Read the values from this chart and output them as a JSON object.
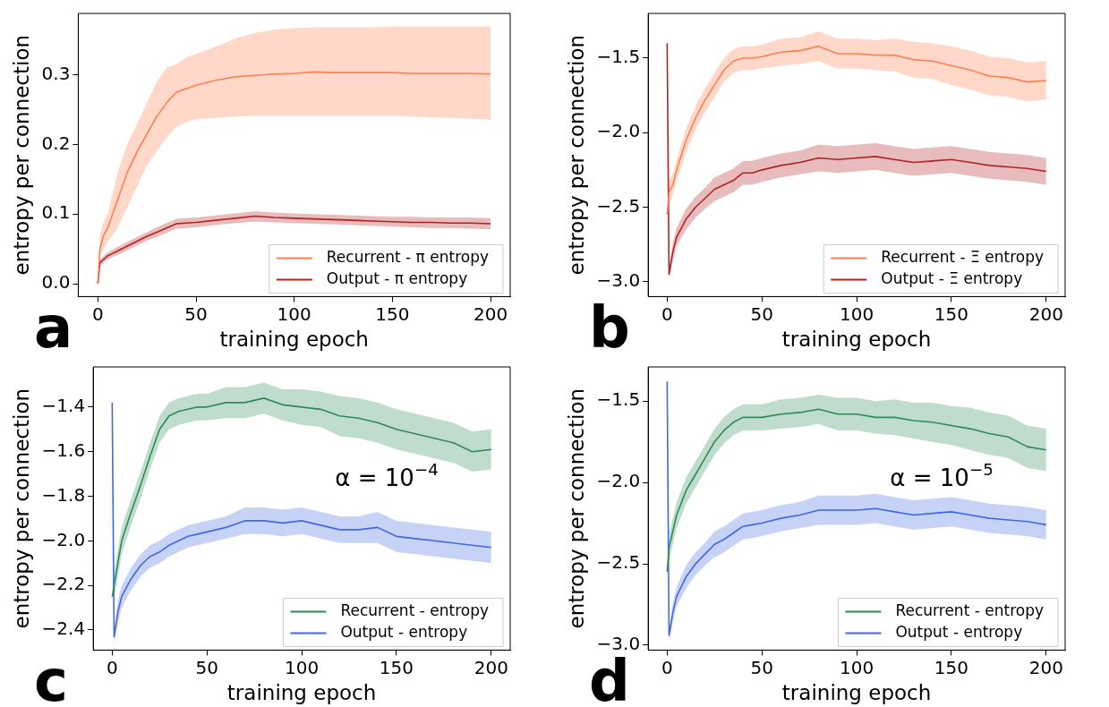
{
  "chart_data": [
    {
      "type": "line",
      "xlabel": "training epoch",
      "ylabel": "entropy per connection",
      "annotations": [
        "a"
      ],
      "legend": "bottom right",
      "grid": false,
      "xlim": [
        -10,
        210
      ],
      "xticks": [
        0,
        50,
        100,
        150,
        200
      ],
      "ylim": [
        -0.0185,
        0.388
      ],
      "yticks": [
        {
          "value": 0,
          "label": "0.0"
        },
        {
          "value": 0.1,
          "label": "0.1"
        },
        {
          "value": 0.2,
          "label": "0.2"
        },
        {
          "value": 0.3,
          "label": "0.3"
        }
      ],
      "x": [
        0,
        1,
        3,
        5,
        10,
        15,
        20,
        25,
        30,
        35,
        40,
        45,
        50,
        60,
        70,
        80,
        90,
        100,
        110,
        120,
        130,
        140,
        150,
        160,
        170,
        180,
        190,
        200
      ],
      "series": [
        {
          "name": "Recurrent - π entropy",
          "color": "#ff7f50",
          "values": [
            0,
            0.05,
            0.07,
            0.08,
            0.12,
            0.16,
            0.19,
            0.215,
            0.24,
            0.26,
            0.275,
            0.28,
            0.285,
            0.292,
            0.297,
            0.299,
            0.301,
            0.302,
            0.304,
            0.303,
            0.303,
            0.303,
            0.303,
            0.302,
            0.302,
            0.302,
            0.302,
            0.301
          ],
          "lower": [
            0,
            0.04,
            0.05,
            0.06,
            0.08,
            0.11,
            0.14,
            0.17,
            0.19,
            0.21,
            0.225,
            0.232,
            0.236,
            0.238,
            0.24,
            0.241,
            0.241,
            0.241,
            0.241,
            0.241,
            0.241,
            0.241,
            0.241,
            0.24,
            0.239,
            0.238,
            0.237,
            0.235
          ],
          "upper": [
            0,
            0.07,
            0.09,
            0.1,
            0.16,
            0.2,
            0.23,
            0.26,
            0.29,
            0.31,
            0.315,
            0.325,
            0.33,
            0.34,
            0.352,
            0.36,
            0.365,
            0.367,
            0.368,
            0.368,
            0.368,
            0.368,
            0.369,
            0.369,
            0.369,
            0.369,
            0.369,
            0.369
          ]
        },
        {
          "name": "Output - π entropy",
          "color": "#b22222",
          "values": [
            0,
            0.03,
            0.035,
            0.04,
            0.047,
            0.054,
            0.061,
            0.068,
            0.074,
            0.08,
            0.086,
            0.087,
            0.088,
            0.091,
            0.094,
            0.097,
            0.095,
            0.094,
            0.093,
            0.092,
            0.091,
            0.09,
            0.089,
            0.088,
            0.088,
            0.087,
            0.087,
            0.086
          ],
          "lower": [
            0,
            0.026,
            0.03,
            0.035,
            0.041,
            0.048,
            0.055,
            0.062,
            0.067,
            0.073,
            0.079,
            0.08,
            0.081,
            0.084,
            0.087,
            0.089,
            0.088,
            0.087,
            0.086,
            0.085,
            0.084,
            0.083,
            0.082,
            0.081,
            0.08,
            0.08,
            0.079,
            0.078
          ],
          "upper": [
            0,
            0.034,
            0.04,
            0.045,
            0.053,
            0.06,
            0.067,
            0.074,
            0.081,
            0.087,
            0.093,
            0.094,
            0.095,
            0.098,
            0.101,
            0.104,
            0.102,
            0.101,
            0.1,
            0.099,
            0.098,
            0.097,
            0.096,
            0.096,
            0.095,
            0.095,
            0.095,
            0.094
          ]
        }
      ]
    },
    {
      "type": "line",
      "xlabel": "training epoch",
      "ylabel": "entropy per connection",
      "annotations": [
        "b"
      ],
      "legend": "bottom right",
      "grid": false,
      "xlim": [
        -10,
        210
      ],
      "xticks": [
        0,
        50,
        100,
        150,
        200
      ],
      "ylim": [
        -3.1,
        -1.2
      ],
      "yticks": [
        {
          "value": -1.5,
          "label": "−1.5"
        },
        {
          "value": -2,
          "label": "−2.0"
        },
        {
          "value": -2.5,
          "label": "−2.5"
        },
        {
          "value": -3,
          "label": "−3.0"
        }
      ],
      "x": [
        0,
        1,
        3,
        5,
        10,
        15,
        20,
        25,
        30,
        35,
        40,
        45,
        50,
        60,
        70,
        80,
        90,
        100,
        110,
        120,
        130,
        140,
        150,
        160,
        170,
        180,
        190,
        200
      ],
      "series": [
        {
          "name": "Recurrent - Ξ entropy",
          "color": "#ff7f50",
          "values": [
            -2.55,
            -2.4,
            -2.35,
            -2.25,
            -2.05,
            -1.9,
            -1.78,
            -1.68,
            -1.58,
            -1.52,
            -1.5,
            -1.5,
            -1.49,
            -1.46,
            -1.45,
            -1.42,
            -1.47,
            -1.47,
            -1.48,
            -1.48,
            -1.51,
            -1.52,
            -1.55,
            -1.58,
            -1.62,
            -1.63,
            -1.66,
            -1.65
          ],
          "lower": [
            -2.55,
            -2.48,
            -2.42,
            -2.32,
            -2.13,
            -1.98,
            -1.86,
            -1.76,
            -1.66,
            -1.6,
            -1.58,
            -1.58,
            -1.57,
            -1.55,
            -1.54,
            -1.52,
            -1.57,
            -1.57,
            -1.58,
            -1.59,
            -1.63,
            -1.64,
            -1.68,
            -1.71,
            -1.75,
            -1.76,
            -1.79,
            -1.78
          ],
          "upper": [
            -2.55,
            -2.32,
            -2.28,
            -2.18,
            -1.97,
            -1.82,
            -1.7,
            -1.6,
            -1.5,
            -1.44,
            -1.42,
            -1.42,
            -1.41,
            -1.37,
            -1.36,
            -1.32,
            -1.37,
            -1.37,
            -1.38,
            -1.37,
            -1.39,
            -1.4,
            -1.42,
            -1.45,
            -1.49,
            -1.5,
            -1.53,
            -1.52
          ]
        },
        {
          "name": "Output - Ξ entropy",
          "color": "#b22222",
          "values": [
            -1.4,
            -2.95,
            -2.8,
            -2.7,
            -2.58,
            -2.5,
            -2.44,
            -2.38,
            -2.35,
            -2.32,
            -2.27,
            -2.27,
            -2.25,
            -2.22,
            -2.2,
            -2.17,
            -2.18,
            -2.17,
            -2.16,
            -2.18,
            -2.2,
            -2.19,
            -2.18,
            -2.2,
            -2.22,
            -2.23,
            -2.24,
            -2.26
          ],
          "lower": [
            -1.4,
            -2.98,
            -2.86,
            -2.76,
            -2.65,
            -2.57,
            -2.51,
            -2.46,
            -2.43,
            -2.4,
            -2.35,
            -2.35,
            -2.33,
            -2.3,
            -2.28,
            -2.26,
            -2.27,
            -2.26,
            -2.25,
            -2.27,
            -2.29,
            -2.28,
            -2.27,
            -2.29,
            -2.31,
            -2.32,
            -2.33,
            -2.35
          ],
          "upper": [
            -1.4,
            -2.92,
            -2.74,
            -2.64,
            -2.51,
            -2.43,
            -2.37,
            -2.3,
            -2.27,
            -2.24,
            -2.19,
            -2.19,
            -2.17,
            -2.14,
            -2.12,
            -2.08,
            -2.09,
            -2.08,
            -2.07,
            -2.09,
            -2.11,
            -2.1,
            -2.09,
            -2.11,
            -2.13,
            -2.14,
            -2.15,
            -2.17
          ]
        }
      ]
    },
    {
      "type": "line",
      "xlabel": "training epoch",
      "ylabel": "entropy per connection",
      "annotations": [
        "c",
        "α = 10$^{−4}$"
      ],
      "legend": "bottom right",
      "grid": false,
      "xlim": [
        -10,
        210
      ],
      "xticks": [
        0,
        50,
        100,
        150,
        200
      ],
      "ylim": [
        -2.49,
        -1.22
      ],
      "yticks": [
        {
          "value": -1.4,
          "label": "−1.4"
        },
        {
          "value": -1.6,
          "label": "−1.6"
        },
        {
          "value": -1.8,
          "label": "−1.8"
        },
        {
          "value": -2,
          "label": "−2.0"
        },
        {
          "value": -2.2,
          "label": "−2.2"
        },
        {
          "value": -2.4,
          "label": "−2.4"
        }
      ],
      "x": [
        0,
        1,
        3,
        5,
        10,
        15,
        20,
        25,
        30,
        35,
        40,
        45,
        50,
        60,
        70,
        80,
        90,
        100,
        110,
        120,
        130,
        140,
        150,
        160,
        170,
        180,
        190,
        200
      ],
      "series": [
        {
          "name": "Recurrent - entropy",
          "color": "#2e8b57",
          "values": [
            -2.25,
            -2.2,
            -2.1,
            -2.0,
            -1.87,
            -1.75,
            -1.62,
            -1.5,
            -1.44,
            -1.42,
            -1.41,
            -1.4,
            -1.4,
            -1.38,
            -1.38,
            -1.36,
            -1.39,
            -1.4,
            -1.41,
            -1.44,
            -1.45,
            -1.47,
            -1.5,
            -1.52,
            -1.54,
            -1.56,
            -1.6,
            -1.59
          ],
          "lower": [
            -2.25,
            -2.26,
            -2.16,
            -2.06,
            -1.93,
            -1.81,
            -1.68,
            -1.56,
            -1.5,
            -1.48,
            -1.47,
            -1.46,
            -1.46,
            -1.45,
            -1.45,
            -1.43,
            -1.46,
            -1.48,
            -1.49,
            -1.53,
            -1.54,
            -1.56,
            -1.59,
            -1.61,
            -1.63,
            -1.65,
            -1.69,
            -1.68
          ],
          "upper": [
            -2.25,
            -2.14,
            -2.04,
            -1.94,
            -1.81,
            -1.69,
            -1.56,
            -1.44,
            -1.38,
            -1.36,
            -1.35,
            -1.34,
            -1.34,
            -1.31,
            -1.31,
            -1.29,
            -1.32,
            -1.32,
            -1.33,
            -1.35,
            -1.36,
            -1.38,
            -1.41,
            -1.43,
            -1.45,
            -1.47,
            -1.51,
            -1.5
          ]
        },
        {
          "name": "Output - entropy",
          "color": "#4169e1",
          "values": [
            -1.38,
            -2.43,
            -2.32,
            -2.25,
            -2.17,
            -2.11,
            -2.07,
            -2.05,
            -2.02,
            -2.0,
            -1.98,
            -1.97,
            -1.96,
            -1.94,
            -1.91,
            -1.91,
            -1.92,
            -1.91,
            -1.93,
            -1.95,
            -1.95,
            -1.94,
            -1.98,
            -1.99,
            -2.0,
            -2.01,
            -2.02,
            -2.03
          ],
          "lower": [
            -1.38,
            -2.46,
            -2.37,
            -2.3,
            -2.22,
            -2.16,
            -2.12,
            -2.1,
            -2.07,
            -2.05,
            -2.03,
            -2.02,
            -2.01,
            -1.99,
            -1.97,
            -1.97,
            -1.98,
            -1.97,
            -1.99,
            -2.01,
            -2.01,
            -2.01,
            -2.05,
            -2.06,
            -2.07,
            -2.08,
            -2.09,
            -2.1
          ],
          "upper": [
            -1.38,
            -2.4,
            -2.27,
            -2.2,
            -2.12,
            -2.06,
            -2.02,
            -2.0,
            -1.97,
            -1.95,
            -1.93,
            -1.92,
            -1.91,
            -1.89,
            -1.85,
            -1.85,
            -1.86,
            -1.85,
            -1.87,
            -1.89,
            -1.89,
            -1.87,
            -1.91,
            -1.92,
            -1.93,
            -1.94,
            -1.95,
            -1.96
          ]
        }
      ]
    },
    {
      "type": "line",
      "xlabel": "training epoch",
      "ylabel": "entropy per connection",
      "annotations": [
        "d",
        "α = 10$^{−5}$"
      ],
      "legend": "bottom right",
      "grid": false,
      "xlim": [
        -10,
        210
      ],
      "xticks": [
        0,
        50,
        100,
        150,
        200
      ],
      "ylim": [
        -3.03,
        -1.29
      ],
      "yticks": [
        {
          "value": -1.5,
          "label": "−1.5"
        },
        {
          "value": -2,
          "label": "−2.0"
        },
        {
          "value": -2.5,
          "label": "−2.5"
        },
        {
          "value": -3,
          "label": "−3.0"
        }
      ],
      "x": [
        0,
        1,
        3,
        5,
        10,
        15,
        20,
        25,
        30,
        35,
        40,
        45,
        50,
        60,
        70,
        80,
        90,
        100,
        110,
        120,
        130,
        140,
        150,
        160,
        170,
        180,
        190,
        200
      ],
      "series": [
        {
          "name": "Recurrent - entropy",
          "color": "#2e8b57",
          "values": [
            -2.55,
            -2.4,
            -2.3,
            -2.2,
            -2.05,
            -1.95,
            -1.85,
            -1.75,
            -1.68,
            -1.63,
            -1.6,
            -1.6,
            -1.6,
            -1.58,
            -1.57,
            -1.55,
            -1.58,
            -1.58,
            -1.6,
            -1.6,
            -1.62,
            -1.63,
            -1.65,
            -1.67,
            -1.7,
            -1.72,
            -1.78,
            -1.8
          ],
          "lower": [
            -2.55,
            -2.48,
            -2.38,
            -2.28,
            -2.13,
            -2.03,
            -1.93,
            -1.83,
            -1.76,
            -1.71,
            -1.68,
            -1.68,
            -1.68,
            -1.67,
            -1.66,
            -1.64,
            -1.68,
            -1.68,
            -1.7,
            -1.71,
            -1.73,
            -1.75,
            -1.77,
            -1.8,
            -1.83,
            -1.85,
            -1.91,
            -1.93
          ],
          "upper": [
            -2.55,
            -2.32,
            -2.22,
            -2.12,
            -1.97,
            -1.87,
            -1.77,
            -1.67,
            -1.6,
            -1.55,
            -1.52,
            -1.52,
            -1.52,
            -1.49,
            -1.48,
            -1.46,
            -1.48,
            -1.48,
            -1.5,
            -1.49,
            -1.51,
            -1.51,
            -1.53,
            -1.54,
            -1.57,
            -1.59,
            -1.65,
            -1.67
          ]
        },
        {
          "name": "Output - entropy",
          "color": "#4169e1",
          "values": [
            -1.38,
            -2.94,
            -2.8,
            -2.7,
            -2.58,
            -2.5,
            -2.44,
            -2.38,
            -2.35,
            -2.31,
            -2.27,
            -2.26,
            -2.25,
            -2.22,
            -2.2,
            -2.17,
            -2.17,
            -2.17,
            -2.16,
            -2.18,
            -2.2,
            -2.19,
            -2.18,
            -2.2,
            -2.22,
            -2.23,
            -2.24,
            -2.26
          ],
          "lower": [
            -1.38,
            -2.97,
            -2.86,
            -2.76,
            -2.65,
            -2.57,
            -2.51,
            -2.46,
            -2.43,
            -2.39,
            -2.35,
            -2.34,
            -2.33,
            -2.3,
            -2.28,
            -2.26,
            -2.26,
            -2.26,
            -2.25,
            -2.27,
            -2.29,
            -2.28,
            -2.27,
            -2.29,
            -2.31,
            -2.32,
            -2.33,
            -2.35
          ],
          "upper": [
            -1.38,
            -2.91,
            -2.74,
            -2.64,
            -2.51,
            -2.43,
            -2.37,
            -2.3,
            -2.27,
            -2.23,
            -2.19,
            -2.18,
            -2.17,
            -2.14,
            -2.12,
            -2.08,
            -2.08,
            -2.08,
            -2.07,
            -2.09,
            -2.11,
            -2.1,
            -2.09,
            -2.11,
            -2.13,
            -2.14,
            -2.15,
            -2.17
          ]
        }
      ]
    }
  ]
}
